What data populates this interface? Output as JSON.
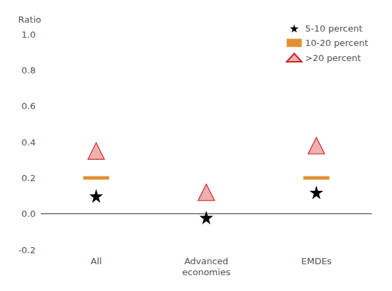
{
  "chart_data": {
    "type": "scatter",
    "categories": [
      "All",
      "Advanced\neconomies",
      "EMDEs"
    ],
    "ylabel": "Ratio",
    "ylim": [
      -0.2,
      1.0
    ],
    "yticks": [
      -0.2,
      {
        "value": 0,
        "label": "0.0"
      },
      0.2,
      0.4,
      0.6,
      0.8,
      {
        "value": 1,
        "label": "1.0"
      }
    ],
    "grid": false,
    "legend": "upper right",
    "series": [
      {
        "name": "5-10 percent",
        "color": "#000000",
        "marker": "star",
        "values": [
          0.1,
          -0.02,
          0.12
        ]
      },
      {
        "name": "10-20 percent",
        "color": "#E09030",
        "marker": "dash",
        "values": [
          0.2,
          null,
          0.2
        ]
      },
      {
        "name": ">20 percent",
        "color": "#CC2020",
        "marker": "triangle",
        "values": [
          0.35,
          0.12,
          0.38
        ]
      }
    ]
  }
}
